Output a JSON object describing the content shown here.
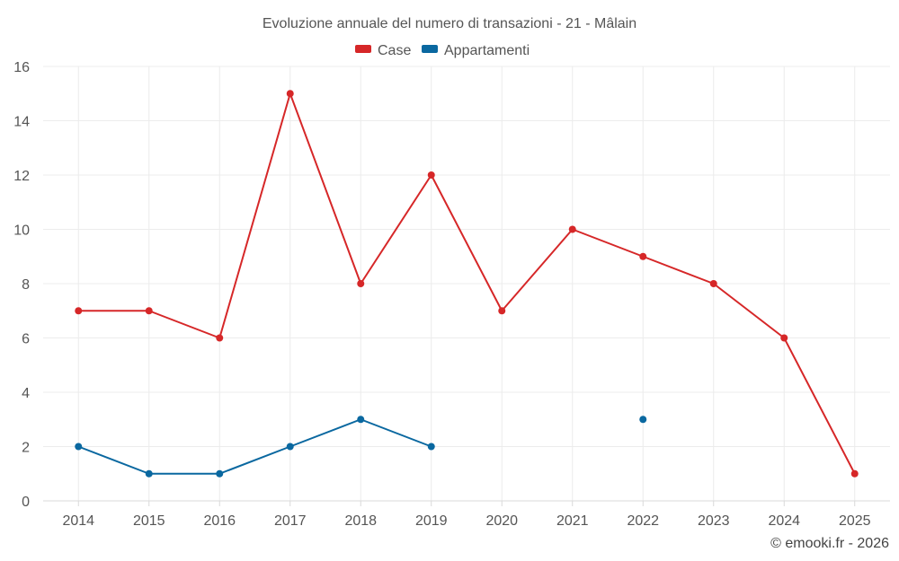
{
  "chart_data": {
    "type": "line",
    "title": "Evoluzione annuale del numero di transazioni - 21 - Mâlain",
    "xlabel": "",
    "ylabel": "",
    "categories": [
      "2014",
      "2015",
      "2016",
      "2017",
      "2018",
      "2019",
      "2020",
      "2021",
      "2022",
      "2023",
      "2024",
      "2025"
    ],
    "ylim": [
      0,
      16
    ],
    "yticks": [
      0,
      2,
      4,
      6,
      8,
      10,
      12,
      14,
      16
    ],
    "grid": true,
    "legend_position": "top-center",
    "series": [
      {
        "name": "Case",
        "color": "#d62728",
        "values": [
          7,
          7,
          6,
          15,
          8,
          12,
          7,
          10,
          9,
          8,
          6,
          1
        ]
      },
      {
        "name": "Appartamenti",
        "color": "#0a68a0",
        "values": [
          2,
          1,
          1,
          2,
          3,
          2,
          null,
          null,
          3,
          null,
          null,
          null
        ]
      }
    ]
  },
  "footer": {
    "credit": "© emooki.fr - 2026"
  }
}
